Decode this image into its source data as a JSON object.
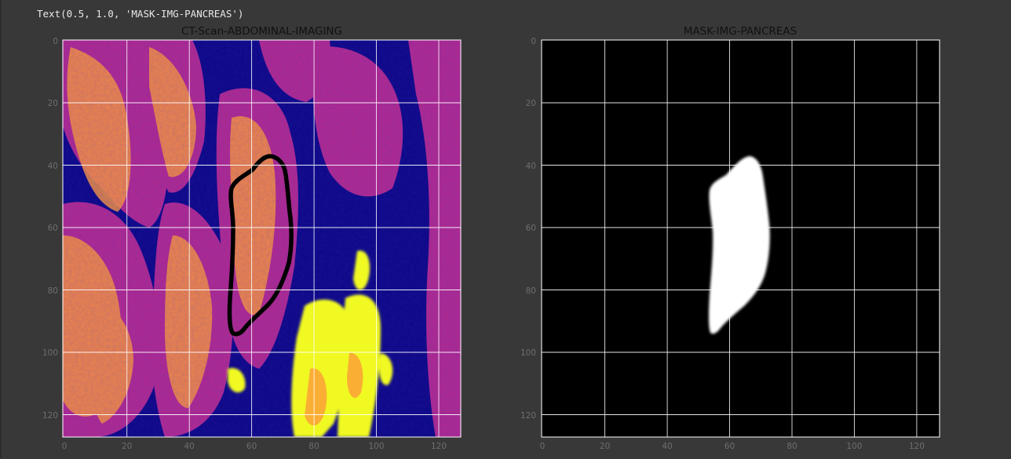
{
  "output_text": "Text(0.5, 1.0, 'MASK-IMG-PANCREAS')",
  "left_panel": {
    "title": "CT-Scan-ABDOMINAL-IMAGING",
    "x_ticks": [
      "0",
      "20",
      "40",
      "60",
      "80",
      "100",
      "120"
    ],
    "y_ticks": [
      "0",
      "20",
      "40",
      "60",
      "80",
      "100",
      "120"
    ]
  },
  "right_panel": {
    "title": "MASK-IMG-PANCREAS",
    "x_ticks": [
      "0",
      "20",
      "40",
      "60",
      "80",
      "100",
      "120"
    ],
    "y_ticks": [
      "0",
      "20",
      "40",
      "60",
      "80",
      "100",
      "120"
    ]
  },
  "colors": {
    "background": "#383838",
    "colormap_low": "#0d0887",
    "colormap_mid": "#b12a90",
    "colormap_high": "#f0f921",
    "grid": "#ffffff",
    "contour": "#000000",
    "mask": "#ffffff"
  }
}
